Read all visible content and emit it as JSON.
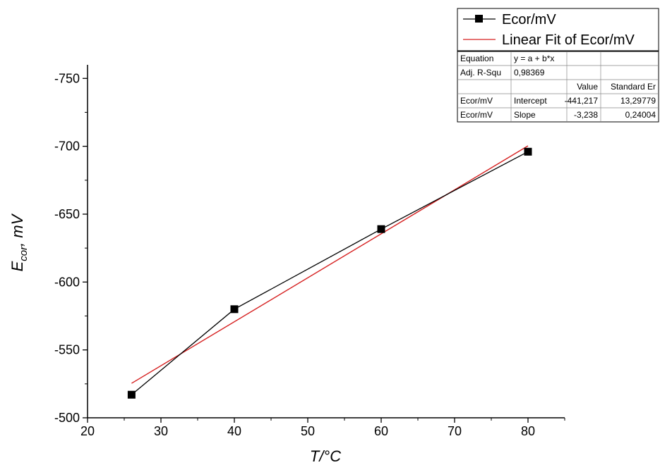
{
  "chart_data": {
    "type": "scatter",
    "xlabel": "T/°C",
    "ylabel_main": "E",
    "ylabel_sub": "cor",
    "ylabel_unit": ", mV",
    "xlim": [
      20,
      85
    ],
    "ylim": [
      -500,
      -760
    ],
    "y_reversed": true,
    "x_ticks": [
      20,
      30,
      40,
      50,
      60,
      70,
      80
    ],
    "y_ticks": [
      -500,
      -550,
      -600,
      -650,
      -700,
      -750
    ],
    "grid": false,
    "legend_position": "top-right",
    "series": [
      {
        "name": "Ecor/mV",
        "marker": "square",
        "color": "#000000",
        "x": [
          26,
          40,
          60,
          80
        ],
        "y": [
          -517,
          -580,
          -639,
          -696
        ]
      },
      {
        "name": "Linear Fit of Ecor/mV",
        "marker": "none",
        "color": "#d62020",
        "x": [
          26,
          80
        ],
        "y": [
          -525.4,
          -700.3
        ]
      }
    ],
    "fit_table": {
      "rows": [
        [
          "Equation",
          "y = a + b*x",
          "",
          ""
        ],
        [
          "Adj. R-Squ",
          "0,98369",
          "",
          ""
        ],
        [
          "",
          "",
          "Value",
          "Standard Er"
        ],
        [
          "Ecor/mV",
          "Intercept",
          "-441,217",
          "13,29779"
        ],
        [
          "Ecor/mV",
          "Slope",
          "-3,238",
          "0,24004"
        ]
      ]
    }
  }
}
